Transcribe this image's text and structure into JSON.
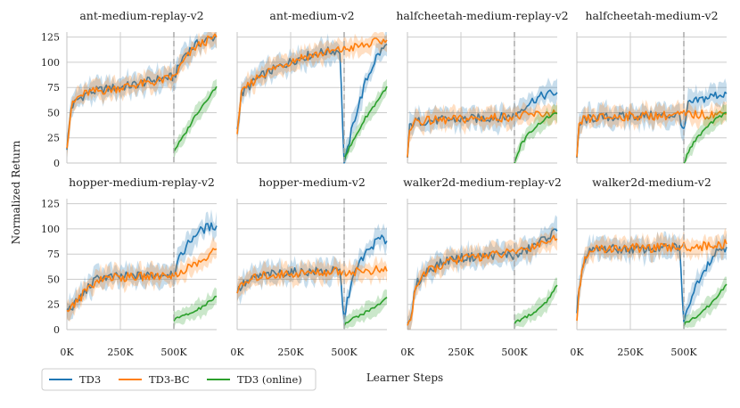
{
  "chart_data": {
    "type": "line",
    "ylabel": "Normalized Return",
    "xlabel": "Learner Steps",
    "x_ticks": [
      "0K",
      "250K",
      "500K"
    ],
    "x_tick_values": [
      0,
      250000,
      500000
    ],
    "xlim": [
      0,
      700000
    ],
    "ylim": [
      0,
      130
    ],
    "y_ticks": [
      "0",
      "25",
      "50",
      "75",
      "100",
      "125"
    ],
    "y_tick_values": [
      0,
      25,
      50,
      75,
      100,
      125
    ],
    "switch_step": 500000,
    "colors": {
      "TD3": "#1f77b4",
      "TD3-BC": "#ff7f0e",
      "TD3 (online)": "#2ca02c",
      "vline": "#aaaaaa"
    },
    "legend": [
      "TD3",
      "TD3-BC",
      "TD3 (online)"
    ],
    "panels": [
      {
        "title": "ant-medium-replay-v2",
        "TD3": [
          [
            0,
            14
          ],
          [
            20000,
            55
          ],
          [
            50000,
            63
          ],
          [
            100000,
            70
          ],
          [
            200000,
            74
          ],
          [
            300000,
            77
          ],
          [
            400000,
            82
          ],
          [
            480000,
            85
          ],
          [
            500000,
            85
          ],
          [
            550000,
            108
          ],
          [
            600000,
            117
          ],
          [
            650000,
            122
          ],
          [
            700000,
            126
          ]
        ],
        "TD3-BC": [
          [
            0,
            16
          ],
          [
            20000,
            55
          ],
          [
            50000,
            65
          ],
          [
            100000,
            70
          ],
          [
            200000,
            73
          ],
          [
            300000,
            77
          ],
          [
            400000,
            80
          ],
          [
            480000,
            84
          ],
          [
            500000,
            85
          ],
          [
            550000,
            102
          ],
          [
            600000,
            115
          ],
          [
            650000,
            121
          ],
          [
            700000,
            125
          ]
        ],
        "online": [
          [
            500000,
            12
          ],
          [
            550000,
            28
          ],
          [
            600000,
            47
          ],
          [
            650000,
            62
          ],
          [
            700000,
            76
          ]
        ]
      },
      {
        "title": "ant-medium-v2",
        "TD3": [
          [
            0,
            33
          ],
          [
            20000,
            68
          ],
          [
            50000,
            75
          ],
          [
            100000,
            85
          ],
          [
            200000,
            96
          ],
          [
            300000,
            105
          ],
          [
            400000,
            110
          ],
          [
            480000,
            112
          ],
          [
            500000,
            0
          ],
          [
            550000,
            45
          ],
          [
            600000,
            80
          ],
          [
            650000,
            105
          ],
          [
            700000,
            118
          ]
        ],
        "TD3-BC": [
          [
            0,
            33
          ],
          [
            20000,
            68
          ],
          [
            50000,
            76
          ],
          [
            100000,
            86
          ],
          [
            200000,
            97
          ],
          [
            300000,
            105
          ],
          [
            400000,
            109
          ],
          [
            480000,
            112
          ],
          [
            500000,
            113
          ],
          [
            550000,
            115
          ],
          [
            600000,
            117
          ],
          [
            650000,
            120
          ],
          [
            700000,
            122
          ]
        ],
        "online": [
          [
            500000,
            5
          ],
          [
            550000,
            25
          ],
          [
            600000,
            45
          ],
          [
            650000,
            60
          ],
          [
            700000,
            76
          ]
        ]
      },
      {
        "title": "halfcheetah-medium-replay-v2",
        "TD3": [
          [
            0,
            5
          ],
          [
            10000,
            35
          ],
          [
            30000,
            41
          ],
          [
            100000,
            42
          ],
          [
            200000,
            43
          ],
          [
            300000,
            44
          ],
          [
            400000,
            45
          ],
          [
            480000,
            46
          ],
          [
            500000,
            47
          ],
          [
            550000,
            57
          ],
          [
            600000,
            64
          ],
          [
            650000,
            68
          ],
          [
            700000,
            70
          ]
        ],
        "TD3-BC": [
          [
            0,
            5
          ],
          [
            10000,
            35
          ],
          [
            30000,
            41
          ],
          [
            100000,
            42
          ],
          [
            200000,
            43
          ],
          [
            300000,
            44
          ],
          [
            400000,
            45
          ],
          [
            480000,
            46
          ],
          [
            500000,
            46
          ],
          [
            550000,
            47
          ],
          [
            600000,
            48
          ],
          [
            650000,
            49
          ],
          [
            700000,
            50
          ]
        ],
        "online": [
          [
            500000,
            0
          ],
          [
            530000,
            18
          ],
          [
            570000,
            30
          ],
          [
            620000,
            40
          ],
          [
            660000,
            46
          ],
          [
            700000,
            49
          ]
        ]
      },
      {
        "title": "halfcheetah-medium-v2",
        "TD3": [
          [
            0,
            5
          ],
          [
            10000,
            35
          ],
          [
            30000,
            43
          ],
          [
            100000,
            45
          ],
          [
            200000,
            46
          ],
          [
            300000,
            47
          ],
          [
            400000,
            47
          ],
          [
            480000,
            48
          ],
          [
            500000,
            30
          ],
          [
            520000,
            58
          ],
          [
            580000,
            63
          ],
          [
            640000,
            67
          ],
          [
            700000,
            69
          ]
        ],
        "TD3-BC": [
          [
            0,
            5
          ],
          [
            10000,
            35
          ],
          [
            30000,
            43
          ],
          [
            100000,
            45
          ],
          [
            200000,
            46
          ],
          [
            300000,
            47
          ],
          [
            400000,
            47
          ],
          [
            480000,
            48
          ],
          [
            500000,
            48
          ],
          [
            600000,
            48
          ],
          [
            700000,
            49
          ]
        ],
        "online": [
          [
            500000,
            0
          ],
          [
            530000,
            15
          ],
          [
            570000,
            27
          ],
          [
            620000,
            38
          ],
          [
            660000,
            45
          ],
          [
            700000,
            50
          ]
        ]
      },
      {
        "title": "hopper-medium-replay-v2",
        "TD3": [
          [
            0,
            20
          ],
          [
            20000,
            22
          ],
          [
            50000,
            28
          ],
          [
            100000,
            42
          ],
          [
            150000,
            52
          ],
          [
            200000,
            52
          ],
          [
            300000,
            53
          ],
          [
            400000,
            54
          ],
          [
            480000,
            56
          ],
          [
            500000,
            58
          ],
          [
            550000,
            80
          ],
          [
            600000,
            95
          ],
          [
            650000,
            101
          ],
          [
            700000,
            103
          ]
        ],
        "TD3-BC": [
          [
            0,
            18
          ],
          [
            20000,
            22
          ],
          [
            50000,
            28
          ],
          [
            100000,
            42
          ],
          [
            150000,
            50
          ],
          [
            200000,
            52
          ],
          [
            300000,
            52
          ],
          [
            400000,
            53
          ],
          [
            480000,
            55
          ],
          [
            500000,
            52
          ],
          [
            550000,
            60
          ],
          [
            600000,
            65
          ],
          [
            650000,
            70
          ],
          [
            700000,
            80
          ]
        ],
        "online": [
          [
            500000,
            10
          ],
          [
            550000,
            14
          ],
          [
            600000,
            18
          ],
          [
            650000,
            25
          ],
          [
            700000,
            33
          ]
        ]
      },
      {
        "title": "hopper-medium-v2",
        "TD3": [
          [
            0,
            38
          ],
          [
            30000,
            45
          ],
          [
            100000,
            53
          ],
          [
            200000,
            56
          ],
          [
            300000,
            57
          ],
          [
            400000,
            58
          ],
          [
            480000,
            58
          ],
          [
            500000,
            10
          ],
          [
            530000,
            45
          ],
          [
            580000,
            70
          ],
          [
            620000,
            80
          ],
          [
            660000,
            90
          ],
          [
            700000,
            88
          ]
        ],
        "TD3-BC": [
          [
            0,
            38
          ],
          [
            30000,
            45
          ],
          [
            100000,
            53
          ],
          [
            200000,
            55
          ],
          [
            300000,
            56
          ],
          [
            400000,
            57
          ],
          [
            480000,
            58
          ],
          [
            500000,
            57
          ],
          [
            550000,
            58
          ],
          [
            600000,
            58
          ],
          [
            650000,
            59
          ],
          [
            700000,
            58
          ]
        ],
        "online": [
          [
            500000,
            5
          ],
          [
            550000,
            12
          ],
          [
            600000,
            17
          ],
          [
            650000,
            23
          ],
          [
            700000,
            32
          ]
        ]
      },
      {
        "title": "walker2d-medium-replay-v2",
        "TD3": [
          [
            0,
            5
          ],
          [
            15000,
            10
          ],
          [
            40000,
            45
          ],
          [
            100000,
            60
          ],
          [
            200000,
            70
          ],
          [
            300000,
            72
          ],
          [
            400000,
            74
          ],
          [
            480000,
            75
          ],
          [
            500000,
            72
          ],
          [
            550000,
            78
          ],
          [
            600000,
            84
          ],
          [
            650000,
            92
          ],
          [
            700000,
            98
          ]
        ],
        "TD3-BC": [
          [
            0,
            5
          ],
          [
            15000,
            10
          ],
          [
            40000,
            45
          ],
          [
            100000,
            58
          ],
          [
            200000,
            68
          ],
          [
            300000,
            72
          ],
          [
            400000,
            74
          ],
          [
            480000,
            76
          ],
          [
            500000,
            78
          ],
          [
            550000,
            80
          ],
          [
            600000,
            84
          ],
          [
            650000,
            88
          ],
          [
            700000,
            90
          ]
        ],
        "online": [
          [
            500000,
            7
          ],
          [
            550000,
            12
          ],
          [
            600000,
            18
          ],
          [
            650000,
            28
          ],
          [
            700000,
            44
          ]
        ]
      },
      {
        "title": "walker2d-medium-v2",
        "TD3": [
          [
            0,
            15
          ],
          [
            10000,
            40
          ],
          [
            30000,
            65
          ],
          [
            60000,
            77
          ],
          [
            100000,
            80
          ],
          [
            200000,
            80
          ],
          [
            300000,
            80
          ],
          [
            400000,
            81
          ],
          [
            480000,
            82
          ],
          [
            500000,
            8
          ],
          [
            530000,
            30
          ],
          [
            580000,
            55
          ],
          [
            620000,
            68
          ],
          [
            660000,
            80
          ],
          [
            700000,
            82
          ]
        ],
        "TD3-BC": [
          [
            0,
            10
          ],
          [
            10000,
            40
          ],
          [
            30000,
            65
          ],
          [
            60000,
            77
          ],
          [
            100000,
            80
          ],
          [
            200000,
            81
          ],
          [
            300000,
            81
          ],
          [
            400000,
            81
          ],
          [
            480000,
            82
          ],
          [
            500000,
            82
          ],
          [
            600000,
            83
          ],
          [
            700000,
            85
          ]
        ],
        "online": [
          [
            500000,
            5
          ],
          [
            550000,
            12
          ],
          [
            600000,
            20
          ],
          [
            650000,
            32
          ],
          [
            700000,
            45
          ]
        ]
      }
    ]
  }
}
